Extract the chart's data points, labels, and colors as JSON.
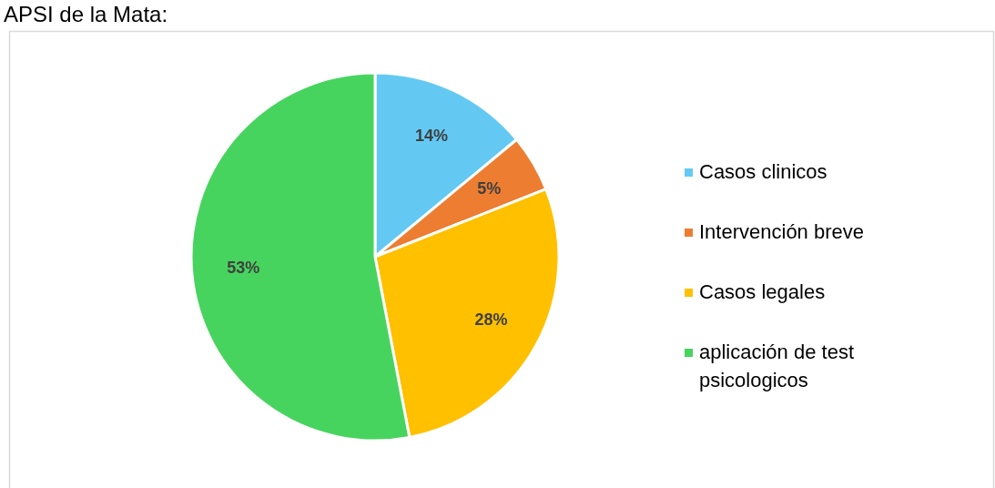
{
  "chart_data": {
    "type": "pie",
    "title": "APSI de la Mata:",
    "categories": [
      "Casos clinicos",
      "Intervención breve",
      "Casos legales",
      "aplicación de test psicologicos"
    ],
    "values": [
      14,
      5,
      28,
      53
    ],
    "colors": [
      "#63c9f3",
      "#ed7d31",
      "#ffc000",
      "#47d45e"
    ],
    "value_labels": [
      "14%",
      "5%",
      "28%",
      "53%"
    ],
    "legend": "right"
  }
}
